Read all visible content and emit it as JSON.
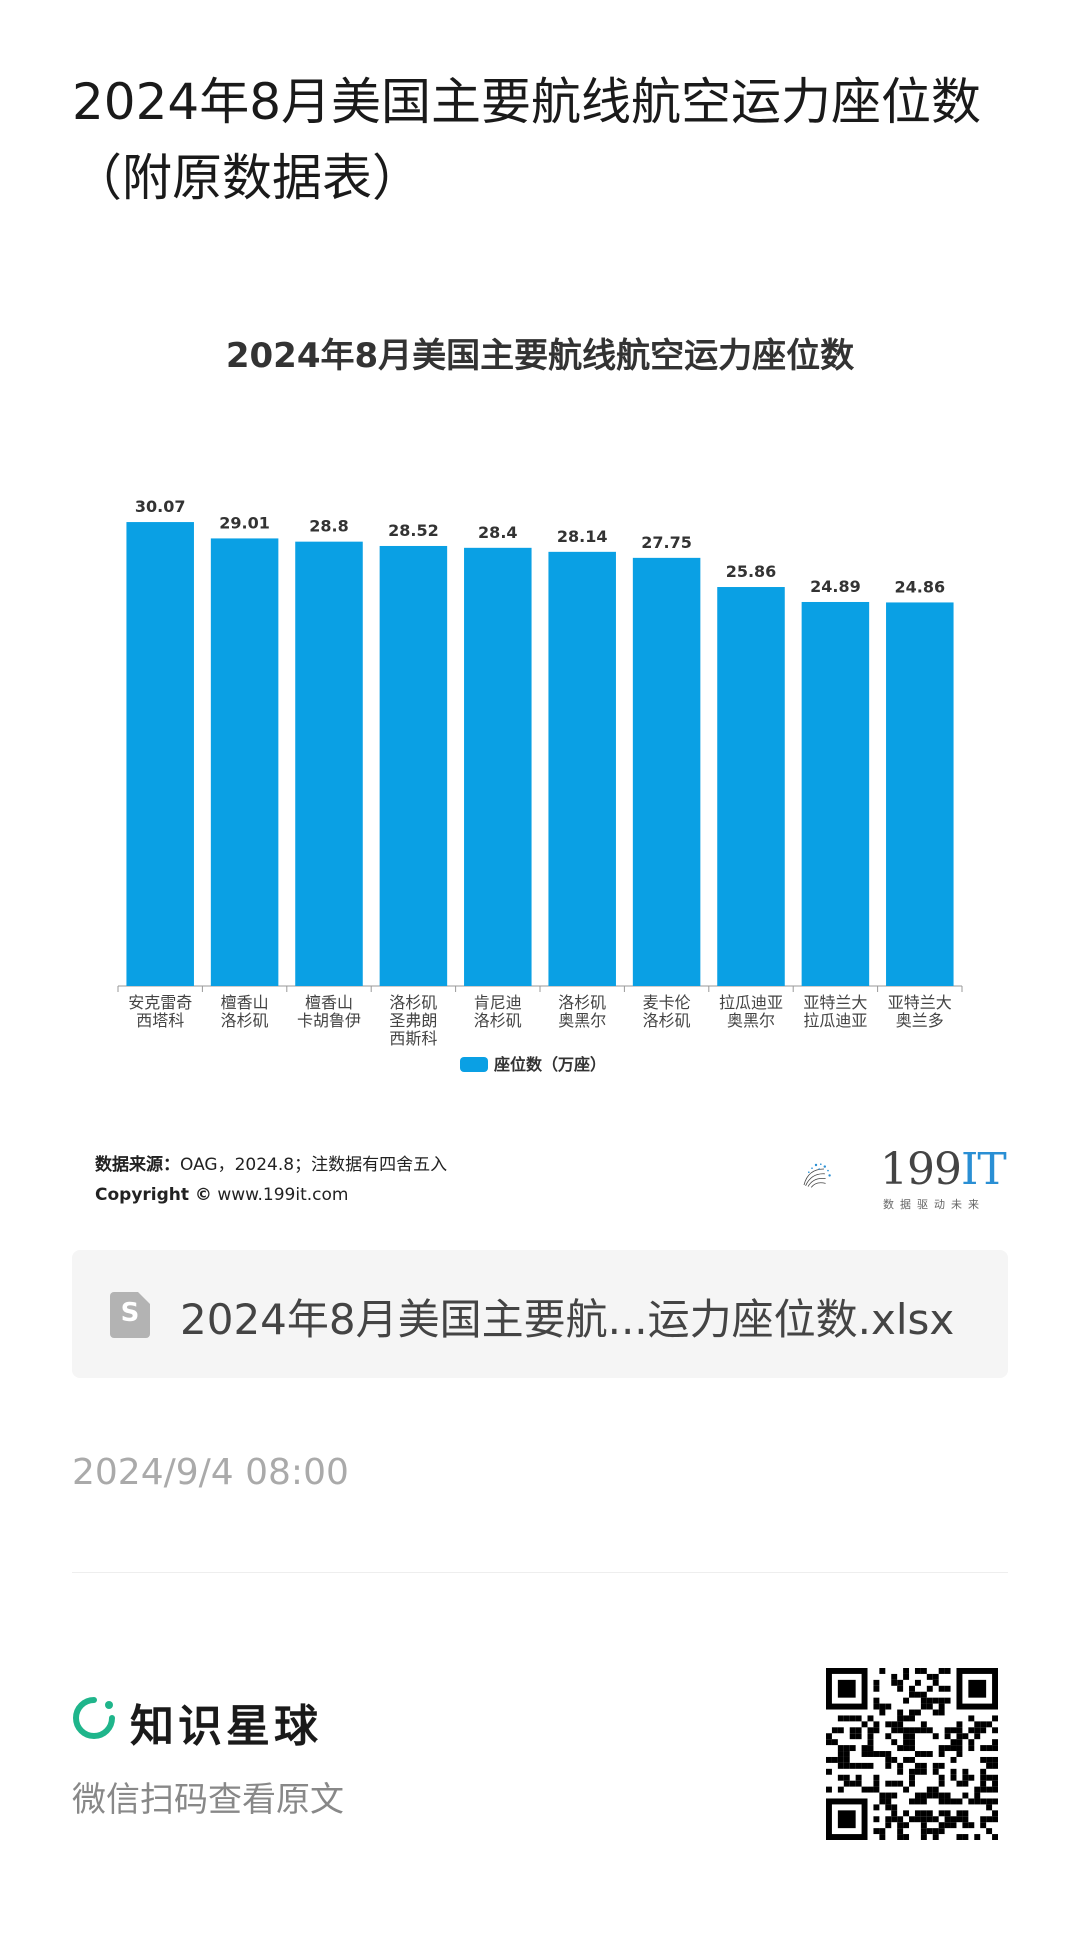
{
  "article": {
    "title": "2024年8月美国主要航线航空运力座位数\n（附原数据表）",
    "timestamp": "2024/9/4 08:00"
  },
  "chart_data": {
    "type": "bar",
    "title": "2024年8月美国主要航线航空运力座位数",
    "categories": [
      [
        "安克雷奇",
        "西塔科"
      ],
      [
        "檀香山",
        "洛杉矶"
      ],
      [
        "檀香山",
        "卡胡鲁伊"
      ],
      [
        "洛杉矶",
        "圣弗朗",
        "西斯科"
      ],
      [
        "肯尼迪",
        "洛杉矶"
      ],
      [
        "洛杉矶",
        "奥黑尔"
      ],
      [
        "麦卡伦",
        "洛杉矶"
      ],
      [
        "拉瓜迪亚",
        "奥黑尔"
      ],
      [
        "亚特兰大",
        "拉瓜迪亚"
      ],
      [
        "亚特兰大",
        "奥兰多"
      ]
    ],
    "series": [
      {
        "name": "座位数（万座）",
        "values": [
          30.07,
          29.01,
          28.8,
          28.52,
          28.4,
          28.14,
          27.75,
          25.86,
          24.89,
          24.86
        ],
        "labels": [
          "30.07",
          "29.01",
          "28.8",
          "28.52",
          "28.4",
          "28.14",
          "27.75",
          "25.86",
          "24.89",
          "24.86"
        ]
      }
    ],
    "ylim": [
      0,
      31.5
    ],
    "bar_color": "#0aa0e4",
    "legend_position": "bottom-center",
    "grid": false
  },
  "source": {
    "label": "数据来源：",
    "text": "OAG，2024.8；注数据有四舍五入",
    "copyright_label": "Copyright ©",
    "copyright_text": " www.199it.com"
  },
  "brand": {
    "name_num": "199",
    "name_it": "IT",
    "slogan": "数据驱动未来"
  },
  "file": {
    "icon": "spreadsheet-icon",
    "icon_letter": "S",
    "name": "2024年8月美国主要航...运力座位数.xlsx"
  },
  "footer": {
    "planet_icon": "zhishi-planet-logo-icon",
    "planet_name": "知识星球",
    "scan_hint": "微信扫码查看原文",
    "qr_icon": "qr-code-icon"
  },
  "colors": {
    "accent_green": "#1fb58b",
    "brand_blue": "#2a8fd4"
  }
}
